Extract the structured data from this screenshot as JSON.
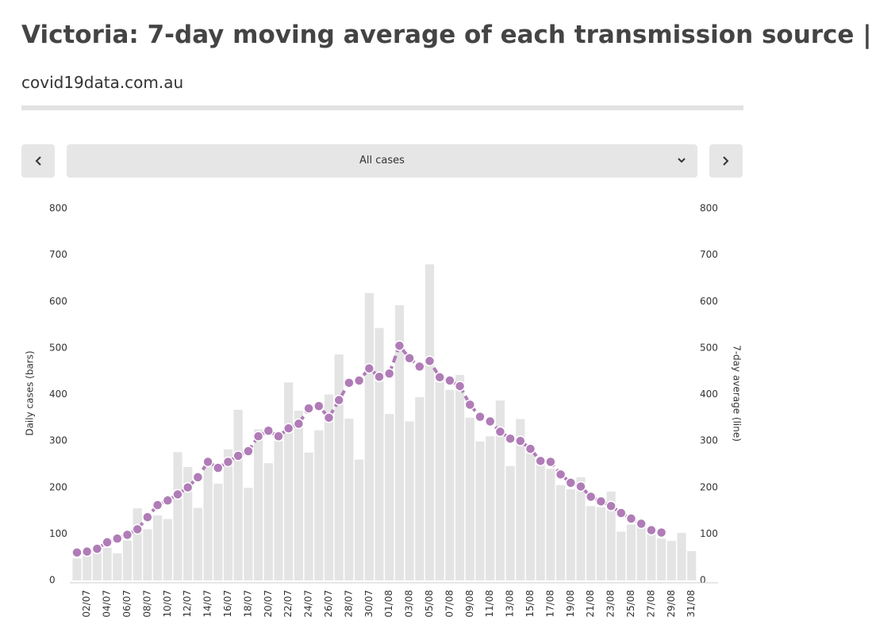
{
  "header": {
    "title": "Victoria: 7-day moving average of each transmission source |",
    "subtitle": "covid19data.com.au"
  },
  "selector": {
    "value": "All cases"
  },
  "chart_data": {
    "type": "bar_line",
    "ylabel": "Daily cases (bars)",
    "y2label": "7-day average (line)",
    "categories": [
      null,
      "02/07",
      null,
      "04/07",
      null,
      "06/07",
      null,
      "08/07",
      null,
      "10/07",
      null,
      "12/07",
      null,
      "14/07",
      null,
      "16/07",
      null,
      "18/07",
      null,
      "20/07",
      null,
      "22/07",
      null,
      "24/07",
      null,
      "26/07",
      null,
      "28/07",
      null,
      "30/07",
      null,
      "01/08",
      null,
      "03/08",
      null,
      "05/08",
      null,
      "07/08",
      null,
      "09/08",
      null,
      "11/08",
      null,
      "13/08",
      null,
      "15/08",
      null,
      "17/08",
      null,
      "19/08",
      null,
      "21/08",
      null,
      "23/08",
      null,
      "25/08",
      null,
      "27/08",
      null,
      "29/08",
      null,
      "31/08"
    ],
    "series": [
      {
        "color": "#e4e4e4",
        "values": [
          47,
          55,
          64,
          70,
          58,
          86,
          155,
          110,
          140,
          132,
          276,
          244,
          156,
          255,
          208,
          282,
          367,
          199,
          325,
          252,
          300,
          426,
          365,
          275,
          323,
          400,
          486,
          348,
          260,
          618,
          543,
          358,
          592,
          342,
          394,
          680,
          427,
          410,
          442,
          350,
          299,
          310,
          387,
          246,
          347,
          283,
          256,
          240,
          205,
          196,
          222,
          160,
          157,
          191,
          105,
          120,
          115,
          100,
          90,
          85,
          102,
          63
        ]
      },
      {
        "color": "#b07cb7",
        "axis": "y2",
        "values": [
          60,
          62,
          68,
          82,
          90,
          98,
          110,
          136,
          162,
          172,
          185,
          200,
          222,
          255,
          242,
          255,
          268,
          278,
          310,
          322,
          310,
          327,
          337,
          370,
          375,
          350,
          388,
          425,
          430,
          456,
          438,
          445,
          505,
          478,
          460,
          472,
          437,
          430,
          418,
          378,
          352,
          342,
          320,
          305,
          300,
          283,
          257,
          255,
          228,
          210,
          202,
          180,
          170,
          160,
          145,
          133,
          122,
          108,
          103,
          null,
          null,
          null
        ]
      }
    ],
    "ylim": [
      0,
      800
    ],
    "yticks": [
      0,
      100,
      200,
      300,
      400,
      500,
      600,
      700,
      800
    ],
    "y2lim": [
      0,
      800
    ],
    "y2ticks": [
      0,
      100,
      200,
      300,
      400,
      500,
      600,
      700,
      800
    ]
  }
}
